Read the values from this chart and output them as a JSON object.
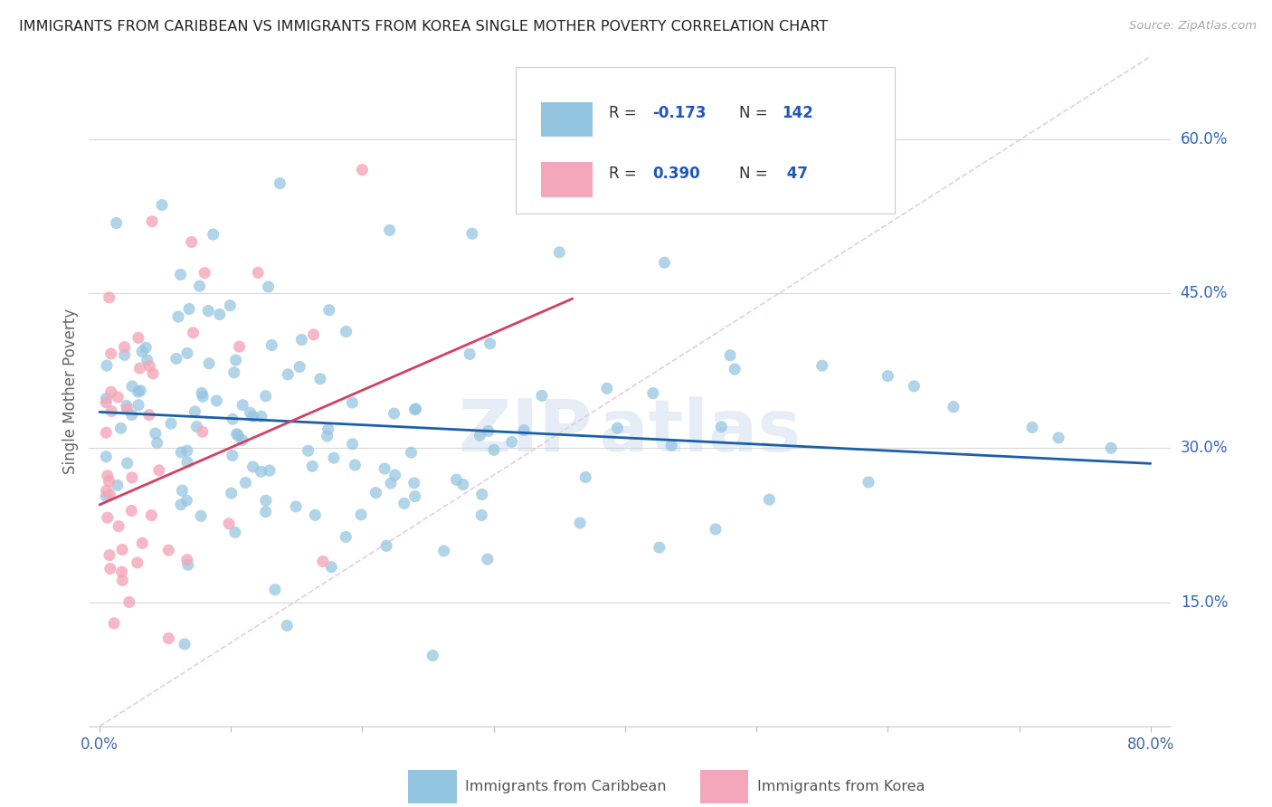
{
  "title": "IMMIGRANTS FROM CARIBBEAN VS IMMIGRANTS FROM KOREA SINGLE MOTHER POVERTY CORRELATION CHART",
  "source": "Source: ZipAtlas.com",
  "ylabel": "Single Mother Poverty",
  "right_yticks": [
    "15.0%",
    "30.0%",
    "45.0%",
    "60.0%"
  ],
  "right_ytick_vals": [
    0.15,
    0.3,
    0.45,
    0.6
  ],
  "legend_label1": "Immigrants from Caribbean",
  "legend_label2": "Immigrants from Korea",
  "R1": "-0.173",
  "N1": "142",
  "R2": "0.390",
  "N2": "47",
  "blue_color": "#93c4e0",
  "pink_color": "#f4a7ba",
  "trend_blue": "#1a5fa8",
  "trend_pink": "#d44060",
  "diag_color": "#ddbbcc",
  "watermark": "ZIPAtlas",
  "xlim": [
    0.0,
    0.8
  ],
  "ylim_low": 0.03,
  "ylim_high": 0.68
}
